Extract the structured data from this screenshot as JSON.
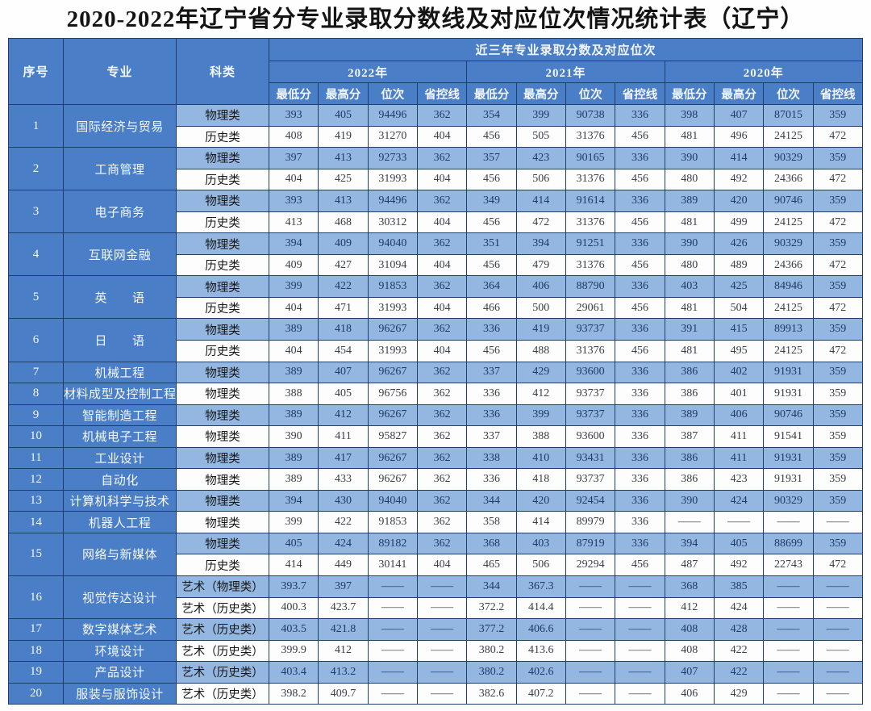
{
  "title": "2020-2022年辽宁省分专业录取分数线及对应位次情况统计表（辽宁）",
  "colors": {
    "header_blue": "#4a7ec6",
    "stripe_blue": "#93b7e0",
    "row_white": "#fdfdfd",
    "border": "#1e3e6e",
    "num_navy": "#1e3a66",
    "num_dark": "#3a4048"
  },
  "table": {
    "header": {
      "seq": "序号",
      "major": "专业",
      "category": "科类",
      "banner": "近三年专业录取分数及对应位次",
      "years": [
        "2022年",
        "2021年",
        "2020年"
      ],
      "metrics": [
        "最低分",
        "最高分",
        "位次",
        "省控线"
      ]
    },
    "rows": [
      {
        "seq": "1",
        "major": "国际经济与贸易",
        "subrows": [
          {
            "category": "物理类",
            "values": [
              "393",
              "405",
              "94496",
              "362",
              "354",
              "399",
              "90738",
              "336",
              "398",
              "407",
              "87015",
              "359"
            ]
          },
          {
            "category": "历史类",
            "values": [
              "408",
              "419",
              "31270",
              "404",
              "456",
              "505",
              "31376",
              "456",
              "481",
              "496",
              "24125",
              "472"
            ]
          }
        ]
      },
      {
        "seq": "2",
        "major": "工商管理",
        "subrows": [
          {
            "category": "物理类",
            "values": [
              "397",
              "413",
              "92733",
              "362",
              "357",
              "423",
              "90165",
              "336",
              "390",
              "414",
              "90329",
              "359"
            ]
          },
          {
            "category": "历史类",
            "values": [
              "404",
              "425",
              "31993",
              "404",
              "456",
              "506",
              "31376",
              "456",
              "480",
              "492",
              "24366",
              "472"
            ]
          }
        ]
      },
      {
        "seq": "3",
        "major": "电子商务",
        "subrows": [
          {
            "category": "物理类",
            "values": [
              "393",
              "413",
              "94496",
              "362",
              "349",
              "414",
              "91614",
              "336",
              "389",
              "420",
              "90746",
              "359"
            ]
          },
          {
            "category": "历史类",
            "values": [
              "413",
              "468",
              "30312",
              "404",
              "456",
              "472",
              "31376",
              "456",
              "481",
              "499",
              "24125",
              "472"
            ]
          }
        ]
      },
      {
        "seq": "4",
        "major": "互联网金融",
        "subrows": [
          {
            "category": "物理类",
            "values": [
              "394",
              "409",
              "94040",
              "362",
              "351",
              "394",
              "91251",
              "336",
              "390",
              "426",
              "90329",
              "359"
            ]
          },
          {
            "category": "历史类",
            "values": [
              "409",
              "427",
              "31094",
              "404",
              "456",
              "479",
              "31376",
              "456",
              "480",
              "489",
              "24366",
              "472"
            ]
          }
        ]
      },
      {
        "seq": "5",
        "major": "英　　语",
        "subrows": [
          {
            "category": "物理类",
            "values": [
              "399",
              "422",
              "91853",
              "362",
              "364",
              "406",
              "88790",
              "336",
              "403",
              "425",
              "84946",
              "359"
            ]
          },
          {
            "category": "历史类",
            "values": [
              "404",
              "471",
              "31993",
              "404",
              "466",
              "500",
              "29061",
              "456",
              "481",
              "504",
              "24125",
              "472"
            ]
          }
        ]
      },
      {
        "seq": "6",
        "major": "日　　语",
        "subrows": [
          {
            "category": "物理类",
            "values": [
              "389",
              "418",
              "96267",
              "362",
              "336",
              "419",
              "93737",
              "336",
              "391",
              "415",
              "89913",
              "359"
            ]
          },
          {
            "category": "历史类",
            "values": [
              "404",
              "454",
              "31993",
              "404",
              "456",
              "488",
              "31376",
              "456",
              "481",
              "495",
              "24125",
              "472"
            ]
          }
        ]
      },
      {
        "seq": "7",
        "major": "机械工程",
        "subrows": [
          {
            "category": "物理类",
            "values": [
              "389",
              "407",
              "96267",
              "362",
              "337",
              "429",
              "93600",
              "336",
              "386",
              "402",
              "91931",
              "359"
            ]
          }
        ]
      },
      {
        "seq": "8",
        "major": "材料成型及控制工程",
        "subrows": [
          {
            "category": "物理类",
            "values": [
              "388",
              "405",
              "96756",
              "362",
              "336",
              "412",
              "93737",
              "336",
              "386",
              "401",
              "91931",
              "359"
            ]
          }
        ]
      },
      {
        "seq": "9",
        "major": "智能制造工程",
        "subrows": [
          {
            "category": "物理类",
            "values": [
              "389",
              "412",
              "96267",
              "362",
              "336",
              "399",
              "93737",
              "336",
              "389",
              "406",
              "90746",
              "359"
            ]
          }
        ]
      },
      {
        "seq": "10",
        "major": "机械电子工程",
        "subrows": [
          {
            "category": "物理类",
            "values": [
              "390",
              "411",
              "95827",
              "362",
              "337",
              "388",
              "93600",
              "336",
              "387",
              "411",
              "91541",
              "359"
            ]
          }
        ]
      },
      {
        "seq": "11",
        "major": "工业设计",
        "subrows": [
          {
            "category": "物理类",
            "values": [
              "389",
              "417",
              "96267",
              "362",
              "338",
              "410",
              "93431",
              "336",
              "386",
              "411",
              "91931",
              "359"
            ]
          }
        ]
      },
      {
        "seq": "12",
        "major": "自动化",
        "subrows": [
          {
            "category": "物理类",
            "values": [
              "389",
              "433",
              "96267",
              "362",
              "336",
              "418",
              "93737",
              "336",
              "386",
              "423",
              "91931",
              "359"
            ]
          }
        ]
      },
      {
        "seq": "13",
        "major": "计算机科学与技术",
        "subrows": [
          {
            "category": "物理类",
            "values": [
              "394",
              "430",
              "94040",
              "362",
              "344",
              "420",
              "92454",
              "336",
              "390",
              "424",
              "90329",
              "359"
            ]
          }
        ]
      },
      {
        "seq": "14",
        "major": "机器人工程",
        "subrows": [
          {
            "category": "物理类",
            "values": [
              "399",
              "422",
              "91853",
              "362",
              "358",
              "414",
              "89979",
              "336",
              "——",
              "——",
              "——",
              "——"
            ]
          }
        ]
      },
      {
        "seq": "15",
        "major": "网络与新媒体",
        "subrows": [
          {
            "category": "物理类",
            "values": [
              "405",
              "424",
              "89182",
              "362",
              "368",
              "403",
              "87919",
              "336",
              "394",
              "405",
              "88699",
              "359"
            ]
          },
          {
            "category": "历史类",
            "values": [
              "414",
              "449",
              "30141",
              "404",
              "465",
              "506",
              "29294",
              "456",
              "487",
              "492",
              "22743",
              "472"
            ]
          }
        ]
      },
      {
        "seq": "16",
        "major": "视觉传达设计",
        "subrows": [
          {
            "category": "艺术（物理类）",
            "values": [
              "393.7",
              "397",
              "——",
              "——",
              "344",
              "367.3",
              "——",
              "——",
              "368",
              "385",
              "——",
              "——"
            ]
          },
          {
            "category": "艺术（历史类）",
            "values": [
              "400.3",
              "423.7",
              "——",
              "——",
              "372.2",
              "414.4",
              "——",
              "——",
              "412",
              "424",
              "——",
              "——"
            ]
          }
        ]
      },
      {
        "seq": "17",
        "major": "数字媒体艺术",
        "subrows": [
          {
            "category": "艺术（历史类）",
            "values": [
              "403.5",
              "421.8",
              "——",
              "——",
              "377.2",
              "406.6",
              "——",
              "——",
              "408",
              "428",
              "——",
              "——"
            ]
          }
        ]
      },
      {
        "seq": "18",
        "major": "环境设计",
        "subrows": [
          {
            "category": "艺术（历史类）",
            "values": [
              "399.9",
              "412",
              "——",
              "——",
              "380.2",
              "413.6",
              "——",
              "——",
              "408",
              "422",
              "——",
              "——"
            ]
          }
        ]
      },
      {
        "seq": "19",
        "major": "产品设计",
        "subrows": [
          {
            "category": "艺术（历史类）",
            "values": [
              "403.4",
              "413.2",
              "——",
              "——",
              "380.2",
              "402.6",
              "——",
              "——",
              "407",
              "422",
              "——",
              "——"
            ]
          }
        ]
      },
      {
        "seq": "20",
        "major": "服装与服饰设计",
        "subrows": [
          {
            "category": "艺术（历史类）",
            "values": [
              "398.2",
              "409.7",
              "——",
              "——",
              "382.6",
              "407.2",
              "——",
              "——",
              "406",
              "429",
              "——",
              "——"
            ]
          }
        ]
      }
    ]
  }
}
